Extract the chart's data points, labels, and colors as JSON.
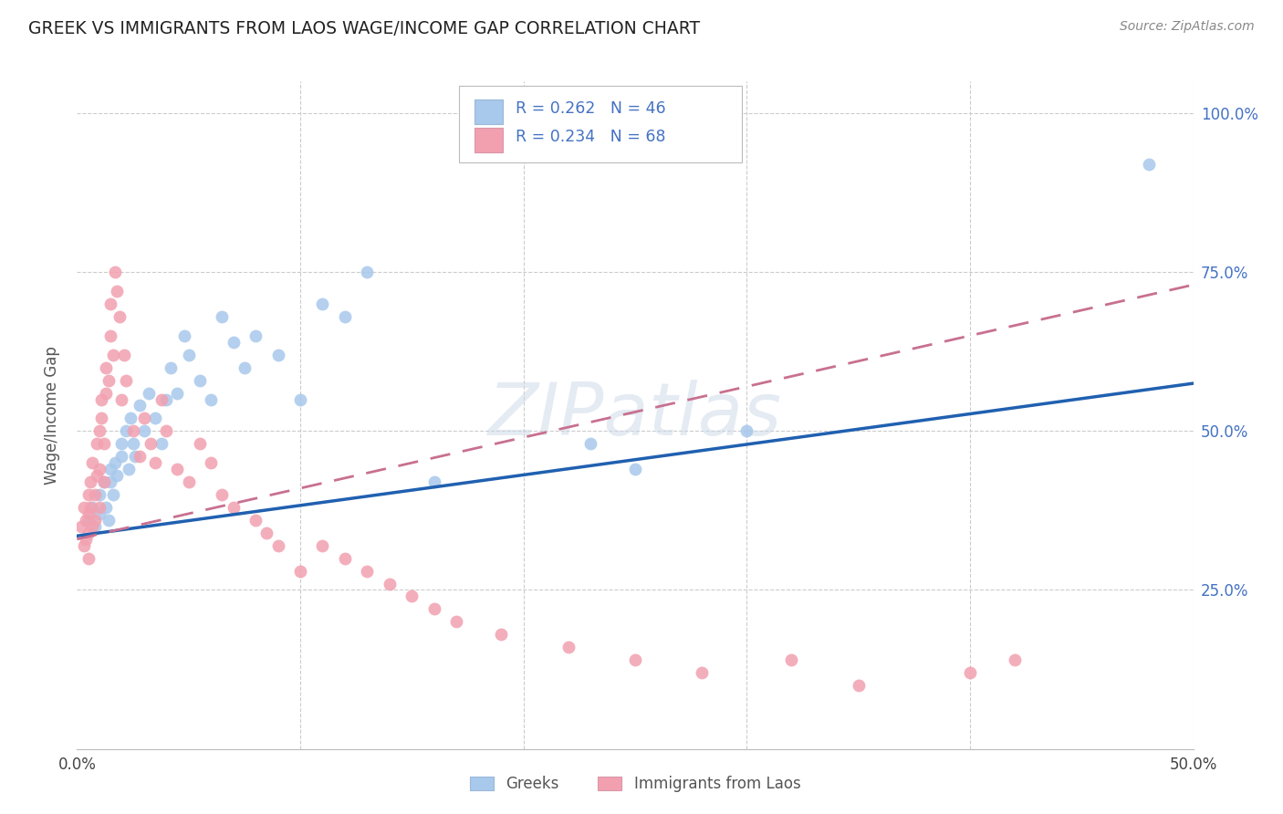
{
  "title": "GREEK VS IMMIGRANTS FROM LAOS WAGE/INCOME GAP CORRELATION CHART",
  "source": "Source: ZipAtlas.com",
  "ylabel": "Wage/Income Gap",
  "legend_label1": "Greeks",
  "legend_label2": "Immigrants from Laos",
  "r1": "0.262",
  "n1": "46",
  "r2": "0.234",
  "n2": "68",
  "color_blue": "#A8C8EC",
  "color_pink": "#F2A0B0",
  "color_blue_line": "#2060B0",
  "color_pink_line": "#C04060",
  "color_pink_line_dash": "#C87090",
  "watermark": "ZIPatlas",
  "xmin": 0.0,
  "xmax": 0.5,
  "ymin": 0.0,
  "ymax": 1.05,
  "blues_x": [
    0.005,
    0.007,
    0.008,
    0.01,
    0.01,
    0.012,
    0.013,
    0.014,
    0.015,
    0.015,
    0.016,
    0.017,
    0.018,
    0.02,
    0.02,
    0.022,
    0.023,
    0.024,
    0.025,
    0.026,
    0.028,
    0.03,
    0.032,
    0.035,
    0.038,
    0.04,
    0.042,
    0.045,
    0.048,
    0.05,
    0.055,
    0.06,
    0.065,
    0.07,
    0.075,
    0.08,
    0.09,
    0.1,
    0.11,
    0.12,
    0.13,
    0.16,
    0.23,
    0.25,
    0.3,
    0.48
  ],
  "blues_y": [
    0.36,
    0.38,
    0.35,
    0.4,
    0.37,
    0.42,
    0.38,
    0.36,
    0.44,
    0.42,
    0.4,
    0.45,
    0.43,
    0.48,
    0.46,
    0.5,
    0.44,
    0.52,
    0.48,
    0.46,
    0.54,
    0.5,
    0.56,
    0.52,
    0.48,
    0.55,
    0.6,
    0.56,
    0.65,
    0.62,
    0.58,
    0.55,
    0.68,
    0.64,
    0.6,
    0.65,
    0.62,
    0.55,
    0.7,
    0.68,
    0.75,
    0.42,
    0.48,
    0.44,
    0.5,
    0.92
  ],
  "pinks_x": [
    0.002,
    0.003,
    0.003,
    0.004,
    0.004,
    0.005,
    0.005,
    0.005,
    0.005,
    0.006,
    0.006,
    0.007,
    0.007,
    0.008,
    0.008,
    0.009,
    0.009,
    0.01,
    0.01,
    0.01,
    0.011,
    0.011,
    0.012,
    0.012,
    0.013,
    0.013,
    0.014,
    0.015,
    0.015,
    0.016,
    0.017,
    0.018,
    0.019,
    0.02,
    0.021,
    0.022,
    0.025,
    0.028,
    0.03,
    0.033,
    0.035,
    0.038,
    0.04,
    0.045,
    0.05,
    0.055,
    0.06,
    0.065,
    0.07,
    0.08,
    0.085,
    0.09,
    0.1,
    0.11,
    0.12,
    0.13,
    0.14,
    0.15,
    0.16,
    0.17,
    0.19,
    0.22,
    0.25,
    0.28,
    0.32,
    0.35,
    0.4,
    0.42
  ],
  "pinks_y": [
    0.35,
    0.32,
    0.38,
    0.36,
    0.33,
    0.4,
    0.37,
    0.34,
    0.3,
    0.42,
    0.38,
    0.35,
    0.45,
    0.4,
    0.36,
    0.43,
    0.48,
    0.5,
    0.44,
    0.38,
    0.55,
    0.52,
    0.48,
    0.42,
    0.6,
    0.56,
    0.58,
    0.65,
    0.7,
    0.62,
    0.75,
    0.72,
    0.68,
    0.55,
    0.62,
    0.58,
    0.5,
    0.46,
    0.52,
    0.48,
    0.45,
    0.55,
    0.5,
    0.44,
    0.42,
    0.48,
    0.45,
    0.4,
    0.38,
    0.36,
    0.34,
    0.32,
    0.28,
    0.32,
    0.3,
    0.28,
    0.26,
    0.24,
    0.22,
    0.2,
    0.18,
    0.16,
    0.14,
    0.12,
    0.14,
    0.1,
    0.12,
    0.14
  ]
}
